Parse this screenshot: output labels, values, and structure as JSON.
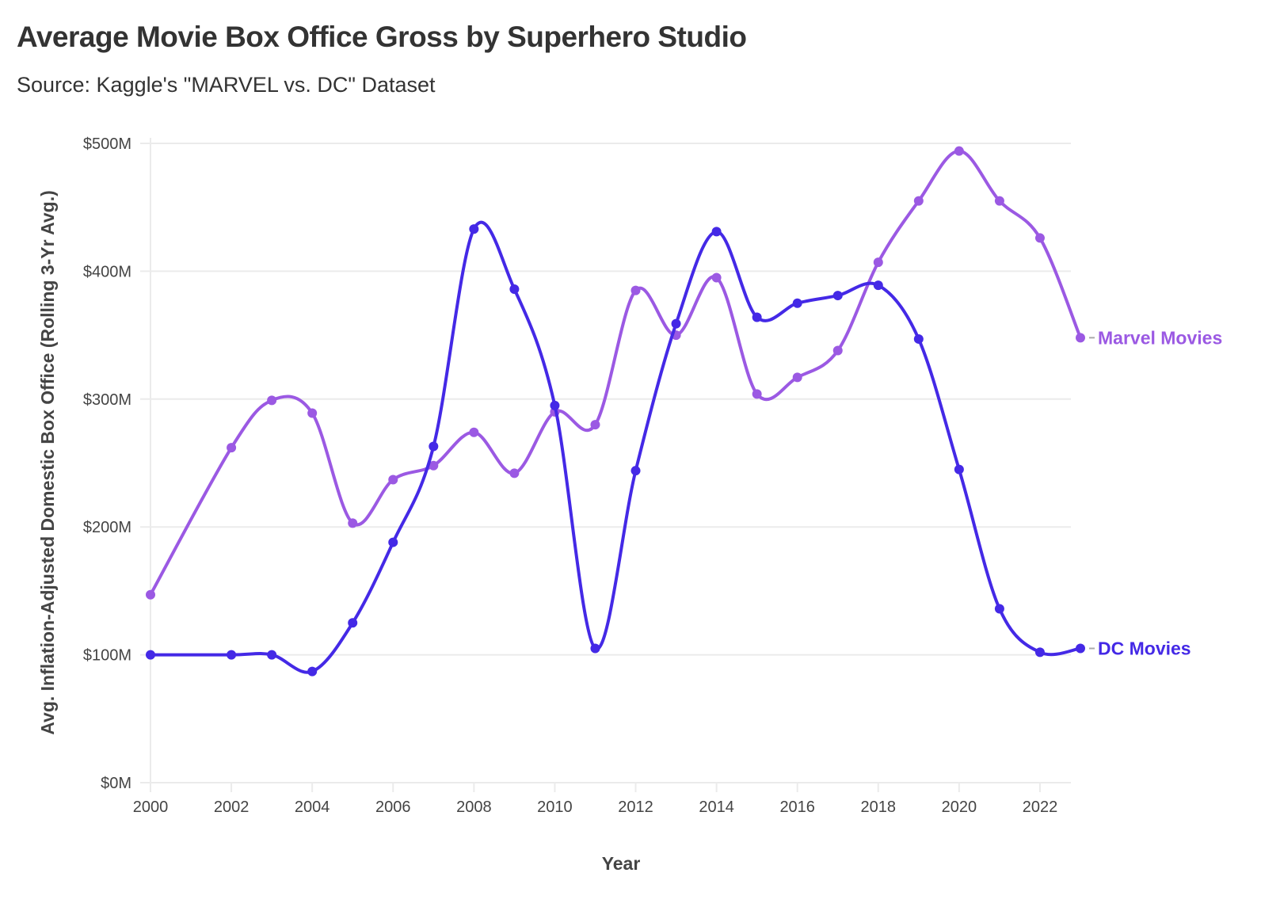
{
  "header": {
    "title": "Average Movie Box Office Gross by Superhero Studio",
    "subtitle": "Source: Kaggle's \"MARVEL vs. DC\" Dataset"
  },
  "chart_data": {
    "type": "line",
    "title": "Average Movie Box Office Gross by Superhero Studio",
    "subtitle": "Source: Kaggle's \"MARVEL vs. DC\" Dataset",
    "xlabel": "Year",
    "ylabel": "Avg. Inflation-Adjusted Domestic Box Office (Rolling 3-Yr Avg.)",
    "xlim": [
      2000,
      2023
    ],
    "ylim": [
      0,
      500
    ],
    "y_unit": "$M",
    "x_ticks": [
      2000,
      2002,
      2004,
      2006,
      2008,
      2010,
      2012,
      2014,
      2016,
      2018,
      2020,
      2022
    ],
    "y_ticks": [
      0,
      100,
      200,
      300,
      400,
      500
    ],
    "y_tick_labels": [
      "$0M",
      "$100M",
      "$200M",
      "$300M",
      "$400M",
      "$500M"
    ],
    "grid": "horizontal",
    "legend": "direct labels at line ends (right)",
    "series": [
      {
        "name": "Marvel Movies",
        "color": "#9B59E3",
        "x": [
          2000,
          2002,
          2003,
          2004,
          2005,
          2006,
          2007,
          2008,
          2009,
          2010,
          2011,
          2012,
          2013,
          2014,
          2015,
          2016,
          2017,
          2018,
          2019,
          2020,
          2021,
          2022,
          2023
        ],
        "values": [
          147,
          262,
          299,
          289,
          203,
          237,
          248,
          274,
          242,
          290,
          280,
          385,
          350,
          395,
          304,
          317,
          338,
          407,
          455,
          494,
          455,
          426,
          348
        ]
      },
      {
        "name": "DC Movies",
        "color": "#4429E6",
        "x": [
          2000,
          2002,
          2003,
          2004,
          2005,
          2006,
          2007,
          2008,
          2009,
          2010,
          2011,
          2012,
          2013,
          2014,
          2015,
          2016,
          2017,
          2018,
          2019,
          2020,
          2021,
          2022,
          2023
        ],
        "values": [
          100,
          100,
          100,
          87,
          125,
          188,
          263,
          433,
          386,
          295,
          105,
          244,
          359,
          431,
          364,
          375,
          381,
          389,
          347,
          245,
          136,
          102,
          105
        ]
      }
    ]
  }
}
